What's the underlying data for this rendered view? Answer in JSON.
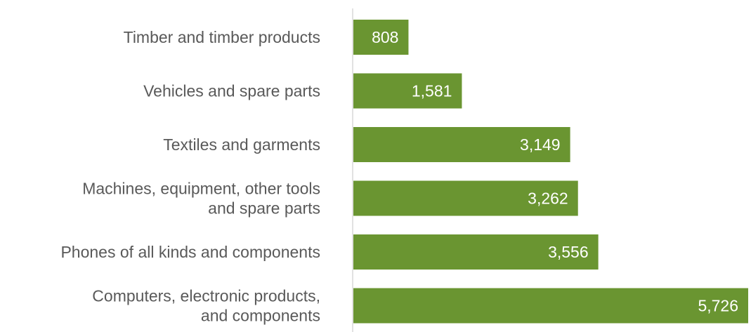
{
  "chart_data": {
    "type": "bar",
    "orientation": "horizontal",
    "categories": [
      [
        "Timber and timber products"
      ],
      [
        "Vehicles and spare parts"
      ],
      [
        "Textiles and garments"
      ],
      [
        "Machines, equipment, other tools",
        "and spare parts"
      ],
      [
        "Phones of all kinds and components"
      ],
      [
        "Computers, electronic products,",
        "and components"
      ]
    ],
    "values": [
      808,
      1581,
      3149,
      3262,
      3556,
      5726
    ],
    "value_labels": [
      "808",
      "1,581",
      "3,149",
      "3,262",
      "3,556",
      "5,726"
    ],
    "xlim": [
      0,
      5726
    ],
    "bar_color": "#6a9531",
    "axis_color": "#d9d9d9",
    "label_color": "#595959",
    "value_label_color": "#ffffff",
    "grid": false,
    "legend": "none"
  }
}
